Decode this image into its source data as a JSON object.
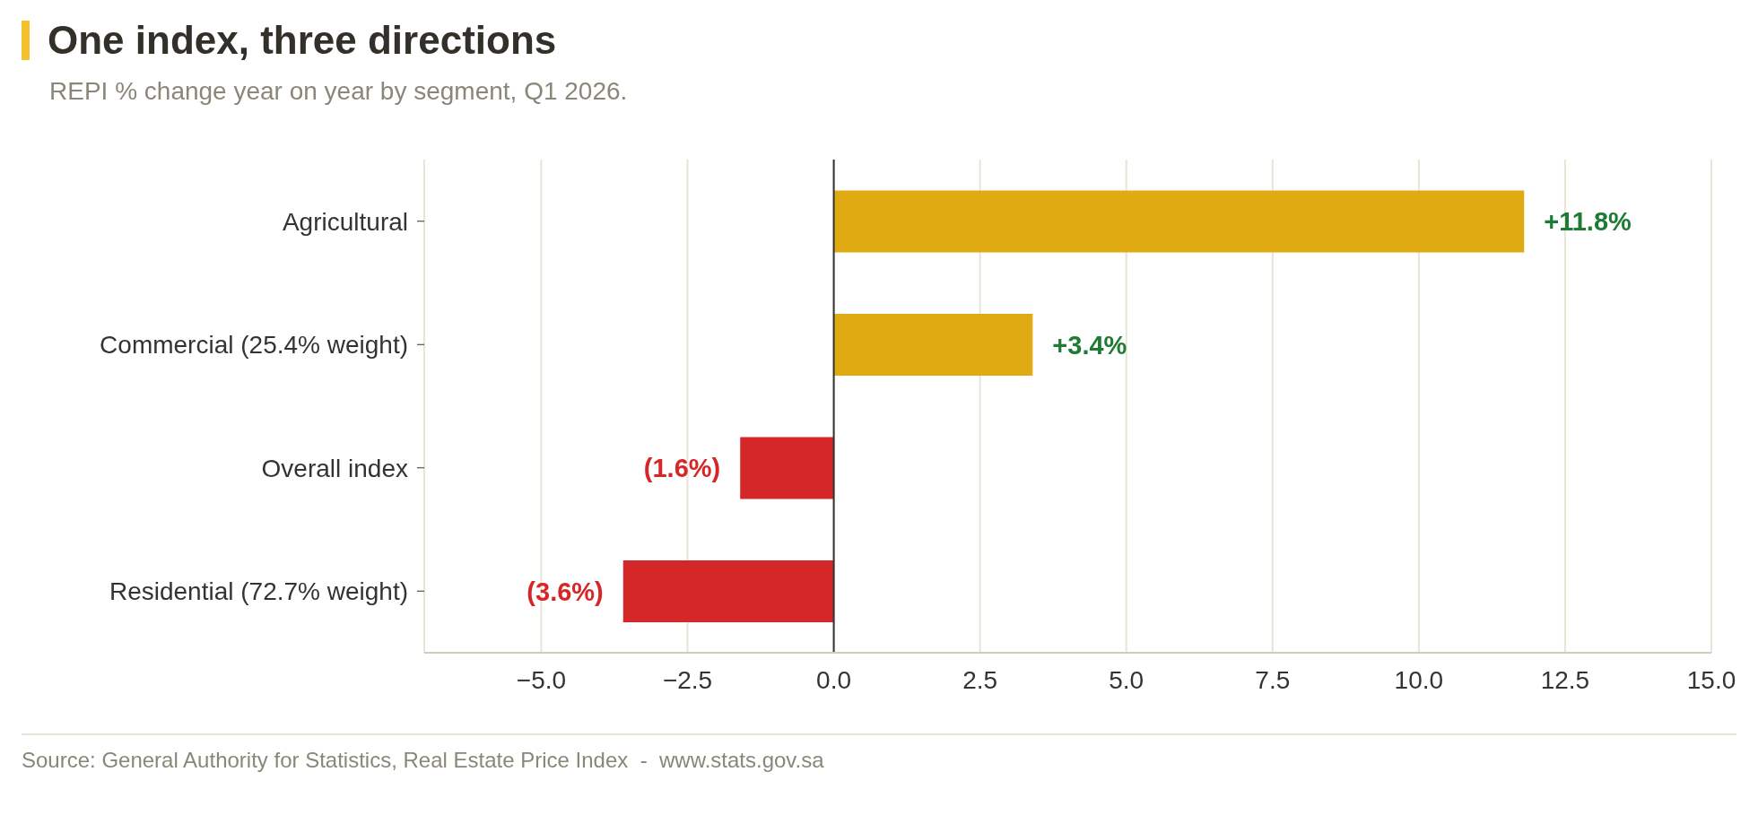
{
  "chart_data": {
    "type": "bar",
    "orientation": "horizontal",
    "title": "One index, three directions",
    "subtitle": "REPI % change year on year by segment, Q1 2026.",
    "categories": [
      "Agricultural",
      "Commercial (25.4% weight)",
      "Overall index",
      "Residential (72.7% weight)"
    ],
    "values": [
      11.8,
      3.4,
      -1.6,
      -3.6
    ],
    "colors": [
      "#e0aa12",
      "#e0aa12",
      "#d62728",
      "#d62728"
    ],
    "value_labels": [
      "+11.8%",
      "+3.4%",
      "(1.6%)",
      "(3.6%)"
    ],
    "xlim": [
      -7,
      15
    ],
    "xticks": [
      {
        "value": -5,
        "label": "−5.0"
      },
      {
        "value": -2.5,
        "label": "−2.5"
      },
      {
        "value": 0,
        "label": "0.0"
      },
      {
        "value": 2.5,
        "label": "2.5"
      },
      {
        "value": 5,
        "label": "5.0"
      },
      {
        "value": 7.5,
        "label": "7.5"
      },
      {
        "value": 10,
        "label": "10.0"
      },
      {
        "value": 12.5,
        "label": "12.5"
      },
      {
        "value": 15,
        "label": "15.0"
      }
    ],
    "grid": "x",
    "ref_lines": [
      {
        "axis": "x",
        "value": 0,
        "color": "#333333"
      }
    ],
    "annotations": [
      "Source: General Authority for Statistics, Real Estate Price Index  -  www.stats.gov.sa"
    ]
  }
}
